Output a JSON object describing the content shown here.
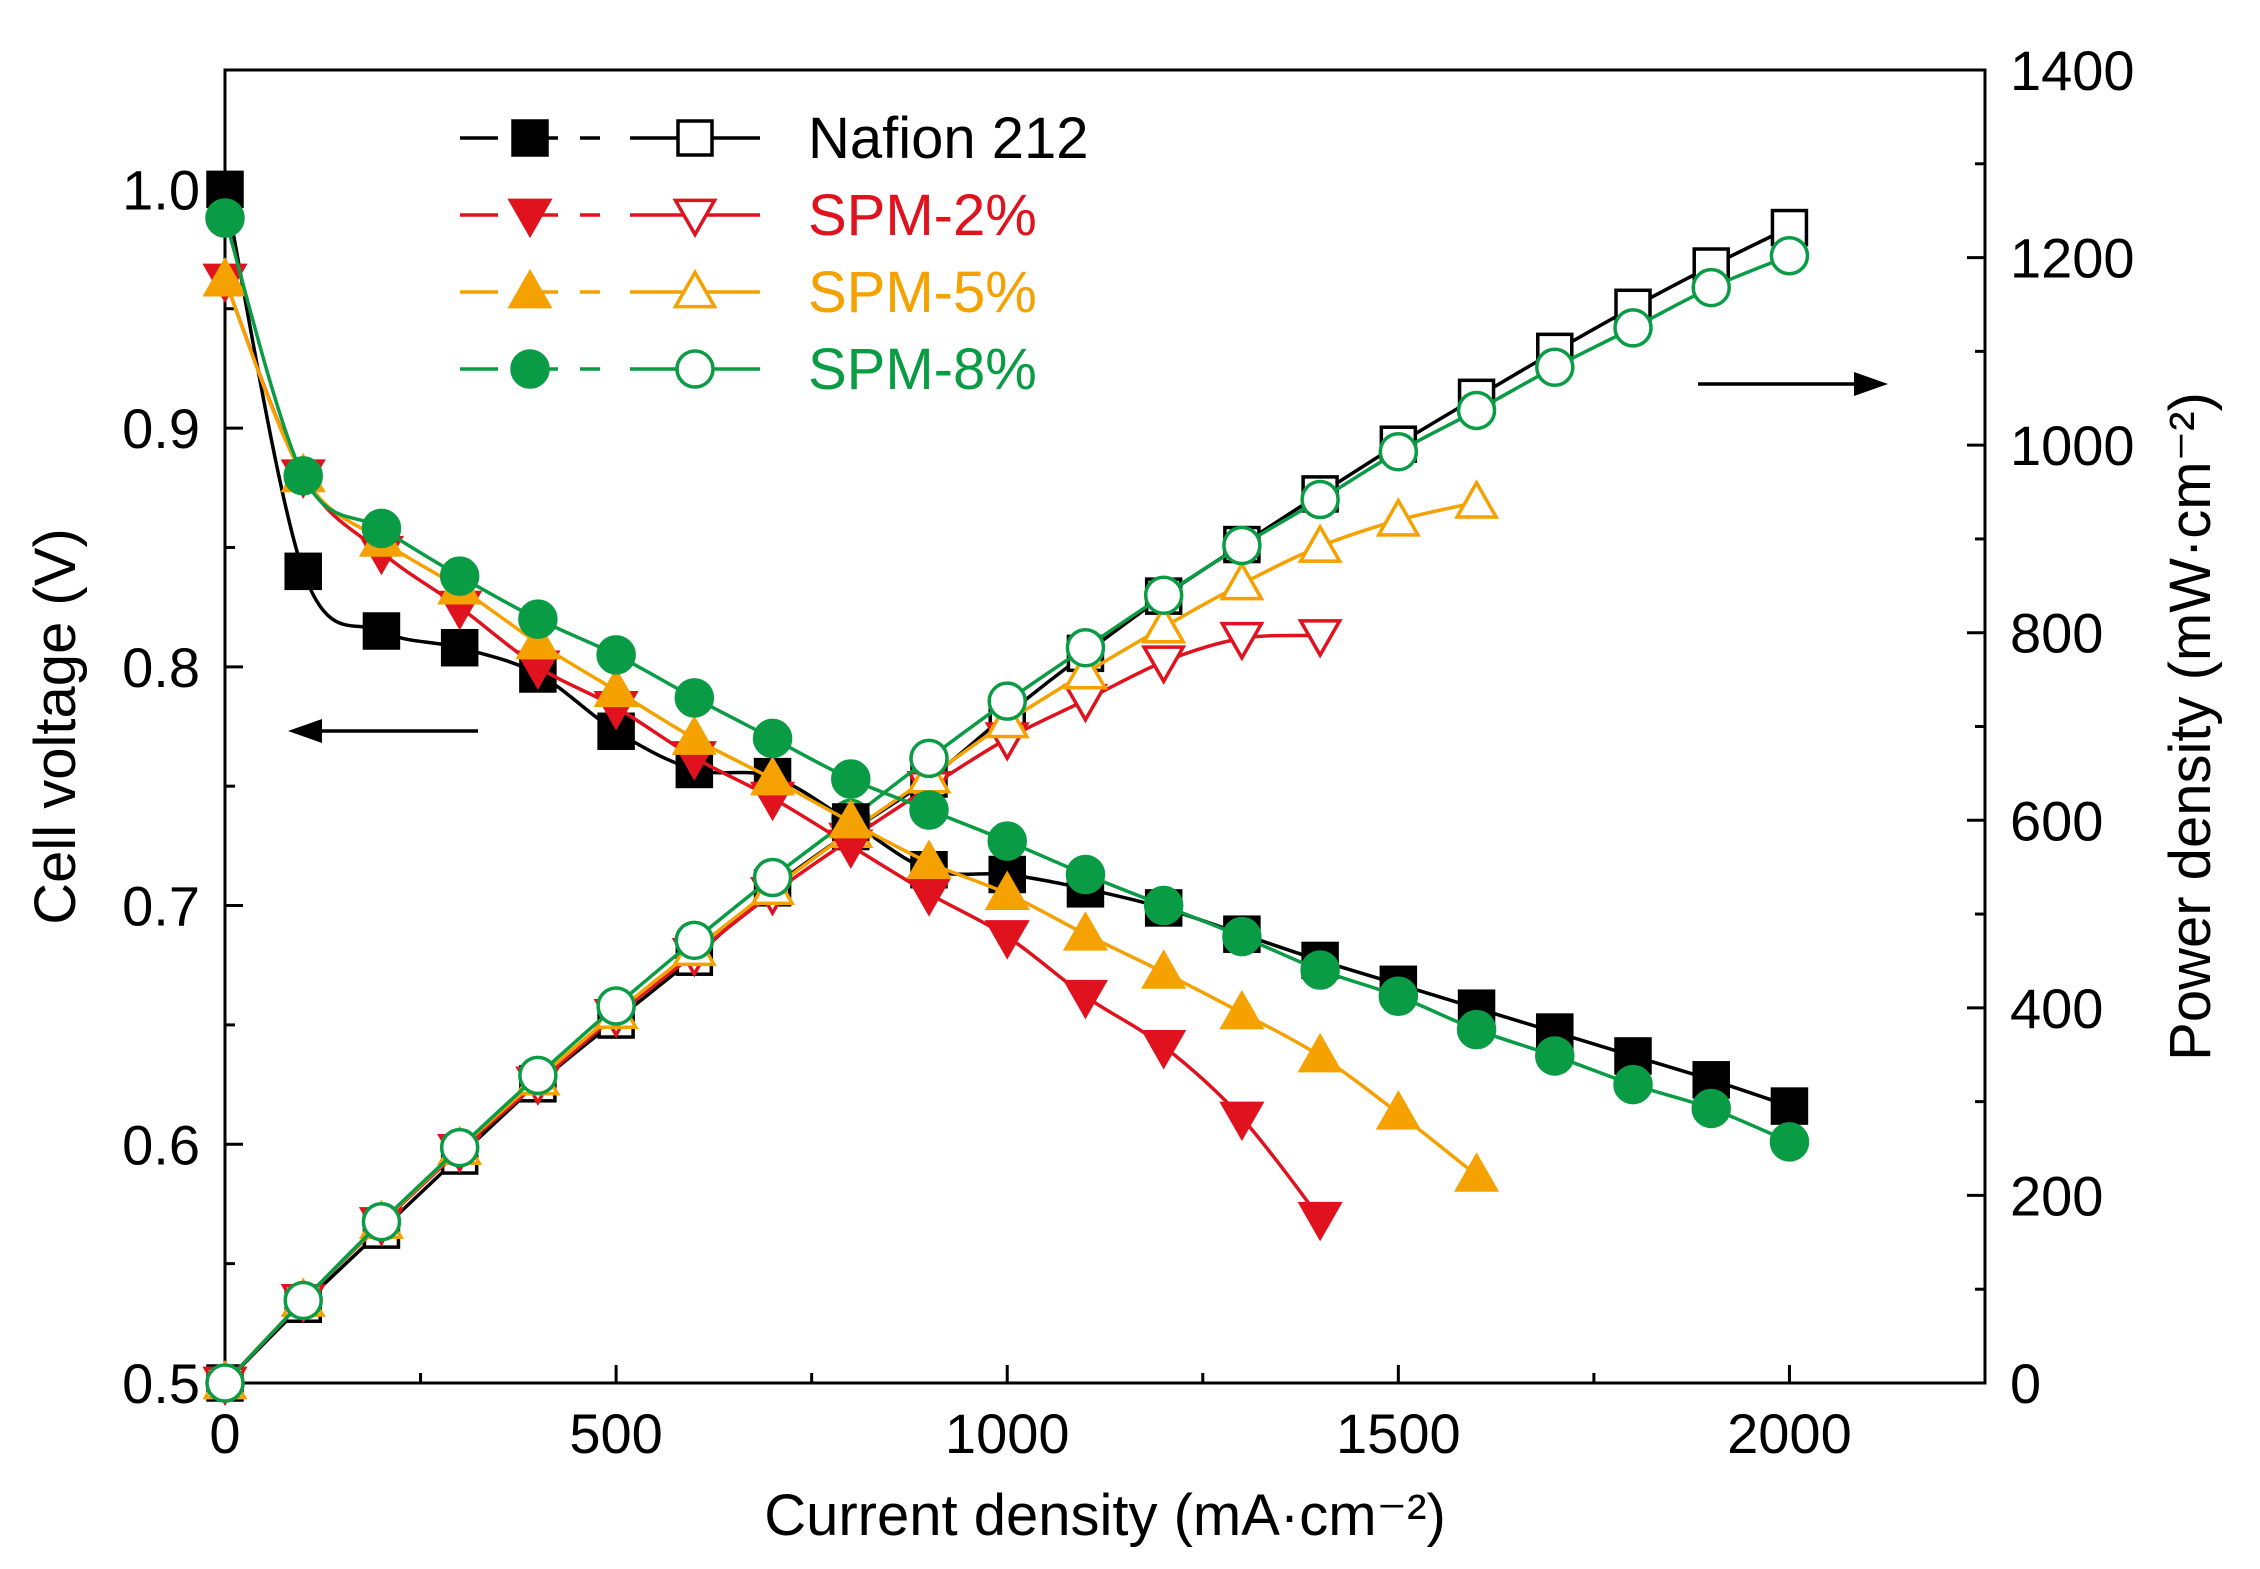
{
  "chart_data": {
    "type": "line",
    "title": "",
    "xlabel": "Current density (mA·cm⁻²)",
    "ylabel_left": "Cell voltage (V)",
    "ylabel_right": "Power density (mW·cm⁻²)",
    "xlim": [
      0,
      2250
    ],
    "ylim_left": [
      0.5,
      1.05
    ],
    "ylim_right": [
      0,
      1400
    ],
    "x_ticks": [
      "0",
      "500",
      "1000",
      "1500",
      "2000"
    ],
    "y_left_ticks": [
      "0.5",
      "0.6",
      "0.7",
      "0.8",
      "0.9",
      "1.0"
    ],
    "y_right_ticks": [
      "0",
      "200",
      "400",
      "600",
      "800",
      "1000",
      "1200",
      "1400"
    ],
    "legend_position": "top-left",
    "series": [
      {
        "name": "Nafion 212",
        "color": "#000000",
        "marker": "square",
        "x": [
          0,
          100,
          200,
          300,
          400,
          500,
          600,
          700,
          800,
          900,
          1000,
          1100,
          1200,
          1300,
          1400,
          1500,
          1600,
          1700,
          1800,
          1900,
          2000
        ],
        "voltage": [
          1.0,
          0.84,
          0.815,
          0.808,
          0.797,
          0.773,
          0.757,
          0.754,
          0.735,
          0.715,
          0.713,
          0.707,
          0.699,
          0.688,
          0.677,
          0.667,
          0.657,
          0.647,
          0.637,
          0.627,
          0.616
        ],
        "power": [
          0,
          84,
          163,
          242,
          319,
          387,
          454,
          528,
          588,
          644,
          713,
          778,
          839,
          894,
          948,
          1001,
          1051,
          1100,
          1147,
          1191,
          1232
        ]
      },
      {
        "name": "SPM-2%",
        "color": "#e0121e",
        "marker": "triangle-down",
        "x": [
          0,
          100,
          200,
          300,
          400,
          500,
          600,
          700,
          800,
          900,
          1000,
          1100,
          1200,
          1300,
          1400
        ],
        "voltage": [
          0.962,
          0.88,
          0.848,
          0.825,
          0.8,
          0.783,
          0.762,
          0.745,
          0.725,
          0.705,
          0.687,
          0.662,
          0.641,
          0.611,
          0.569
        ],
        "power": [
          0,
          88,
          170,
          248,
          320,
          392,
          457,
          522,
          580,
          635,
          687,
          728,
          769,
          794,
          797
        ]
      },
      {
        "name": "SPM-5%",
        "color": "#f5a100",
        "marker": "triangle-up",
        "x": [
          0,
          100,
          200,
          300,
          400,
          500,
          600,
          700,
          800,
          900,
          1000,
          1100,
          1200,
          1300,
          1400,
          1500,
          1600
        ],
        "voltage": [
          0.962,
          0.88,
          0.853,
          0.833,
          0.81,
          0.79,
          0.77,
          0.753,
          0.735,
          0.718,
          0.705,
          0.688,
          0.672,
          0.655,
          0.637,
          0.613,
          0.587
        ],
        "power": [
          0,
          88,
          171,
          250,
          324,
          395,
          462,
          527,
          588,
          646,
          705,
          757,
          806,
          852,
          892,
          920,
          939
        ]
      },
      {
        "name": "SPM-8%",
        "color": "#0a9c44",
        "marker": "circle",
        "x": [
          0,
          100,
          200,
          300,
          400,
          500,
          600,
          700,
          800,
          900,
          1000,
          1100,
          1200,
          1300,
          1400,
          1500,
          1600,
          1700,
          1800,
          1900,
          2000
        ],
        "voltage": [
          0.988,
          0.88,
          0.858,
          0.838,
          0.82,
          0.805,
          0.787,
          0.77,
          0.753,
          0.74,
          0.727,
          0.713,
          0.7,
          0.687,
          0.673,
          0.662,
          0.648,
          0.637,
          0.625,
          0.615,
          0.601
        ],
        "power": [
          0,
          88,
          172,
          251,
          328,
          402,
          472,
          539,
          602,
          666,
          727,
          784,
          840,
          893,
          942,
          993,
          1037,
          1083,
          1125,
          1168,
          1202
        ]
      }
    ]
  }
}
